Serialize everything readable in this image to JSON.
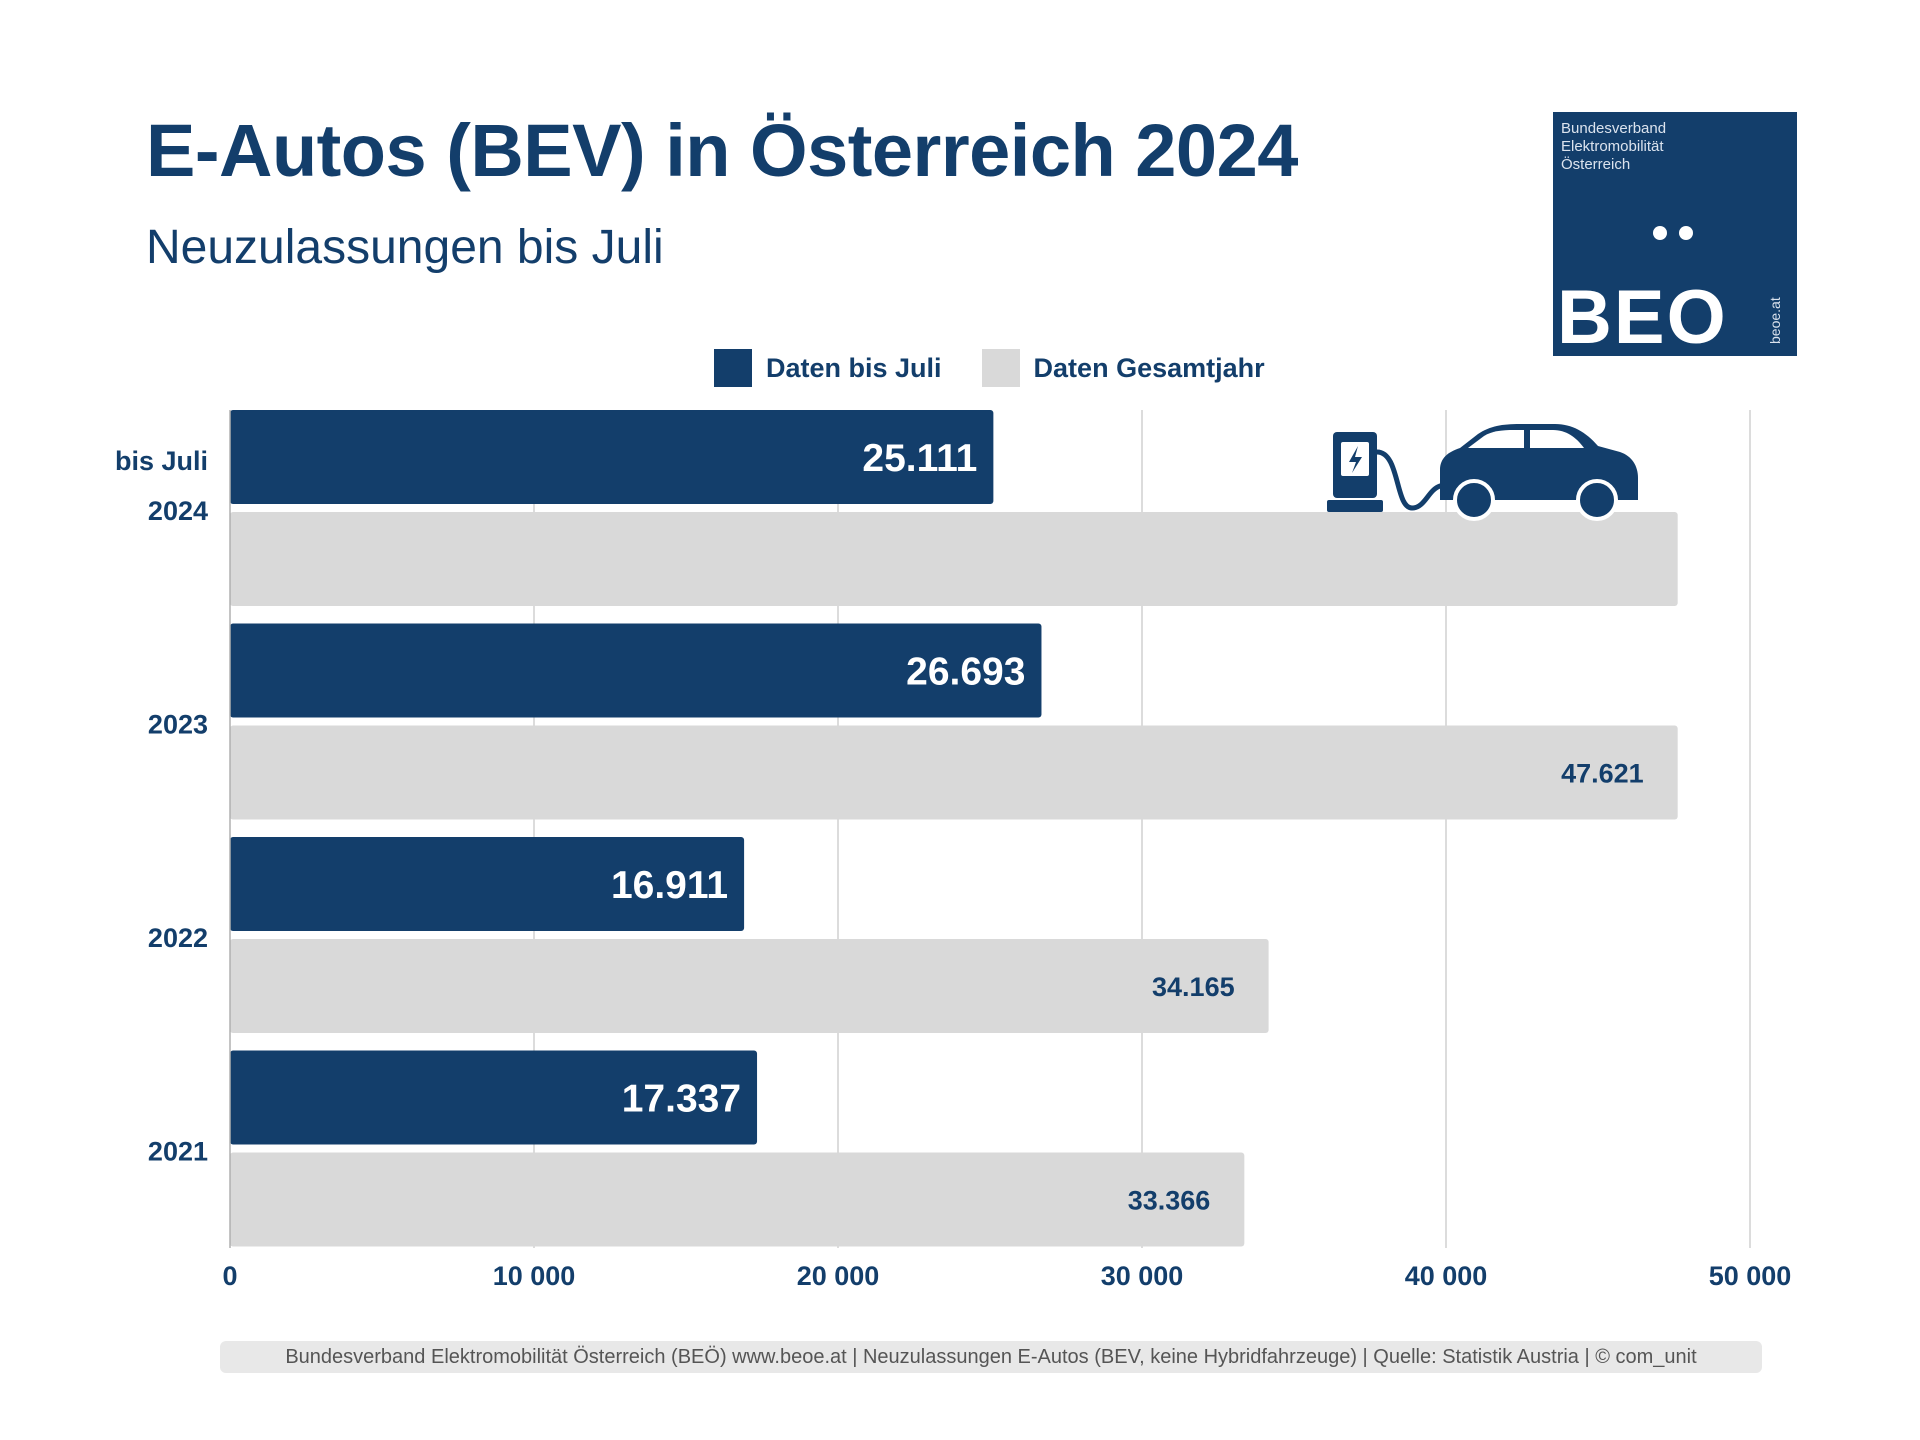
{
  "header": {
    "title": "E-Autos (BEV) in Österreich 2024",
    "subtitle": "Neuzulassungen bis Juli"
  },
  "logo": {
    "lines": [
      "Bundesverband",
      "Elektromobilität",
      "Österreich"
    ],
    "wordmark": "BEO",
    "url": "beoe.at"
  },
  "legend": {
    "items": [
      {
        "label": "Daten bis Juli",
        "color": "#133e6b"
      },
      {
        "label": "Daten Gesamtjahr",
        "color": "#d9d9d9"
      }
    ]
  },
  "footer": {
    "text": "Bundesverband Elektromobilität Österreich (BEÖ) www.beoe.at | Neuzulassungen E-Autos (BEV, keine Hybridfahrzeuge) | Quelle: Statistik Austria | © com_unit"
  },
  "colors": {
    "primary": "#133e6b",
    "secondary": "#d9d9d9",
    "grid": "#d0d0d0"
  },
  "chart_data": {
    "type": "bar",
    "orientation": "horizontal",
    "categories": [
      "2024",
      "2023",
      "2022",
      "2021"
    ],
    "first_category_prefix": "bis Juli",
    "series": [
      {
        "name": "Daten bis Juli",
        "values": [
          25111,
          26693,
          16911,
          17337
        ],
        "labels": [
          "25.111",
          "26.693",
          "16.911",
          "17.337"
        ]
      },
      {
        "name": "Daten Gesamtjahr",
        "values": [
          47621,
          47621,
          34165,
          33366
        ],
        "labels": [
          "",
          "47.621",
          "34.165",
          "33.366"
        ]
      }
    ],
    "xlim": [
      0,
      50000
    ],
    "xticks": [
      0,
      10000,
      20000,
      30000,
      40000,
      50000
    ],
    "xtick_labels": [
      "0",
      "10 000",
      "20 000",
      "30 000",
      "40 000",
      "50 000"
    ],
    "grid": true,
    "legend_position": "top-center",
    "annotation": "charging-station-car-icon"
  }
}
